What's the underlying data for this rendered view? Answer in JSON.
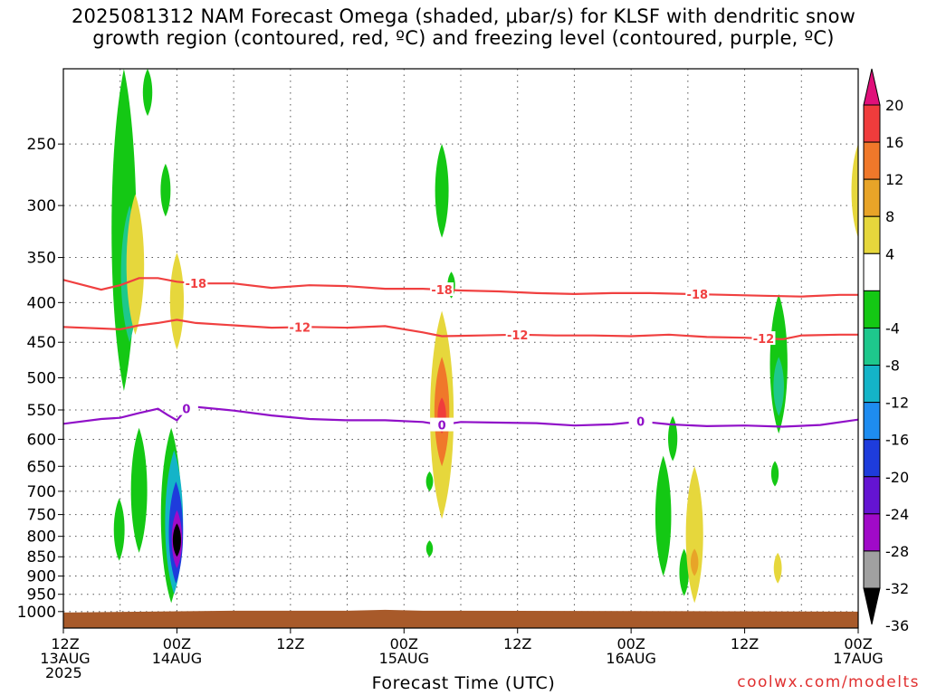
{
  "chart_data": {
    "type": "heatmap",
    "title": {
      "line1": "2025081312 NAM Forecast Omega (shaded, μbar/s) for KLSF with dendritic snow",
      "line2": "growth region (contoured, red, ºC) and freezing level (contoured, purple, ºC)"
    },
    "xlabel": "Forecast Time (UTC)",
    "credit": "coolwx.com/modelts",
    "y_axis": {
      "label": "",
      "scale": "log-pressure",
      "reversed": true,
      "range": [
        1050,
        200
      ],
      "ticks": [
        250,
        300,
        350,
        400,
        450,
        500,
        550,
        600,
        650,
        700,
        750,
        800,
        850,
        900,
        950,
        1000
      ]
    },
    "x_axis": {
      "range_hours": [
        0,
        84
      ],
      "ticks": [
        {
          "hour": 0,
          "line1": "12Z",
          "line2": "13AUG",
          "line3": "2025"
        },
        {
          "hour": 12,
          "line1": "00Z",
          "line2": "14AUG",
          "line3": ""
        },
        {
          "hour": 24,
          "line1": "12Z",
          "line2": "",
          "line3": ""
        },
        {
          "hour": 36,
          "line1": "00Z",
          "line2": "15AUG",
          "line3": ""
        },
        {
          "hour": 48,
          "line1": "12Z",
          "line2": "",
          "line3": ""
        },
        {
          "hour": 60,
          "line1": "00Z",
          "line2": "16AUG",
          "line3": ""
        },
        {
          "hour": 72,
          "line1": "12Z",
          "line2": "",
          "line3": ""
        },
        {
          "hour": 84,
          "line1": "00Z",
          "line2": "17AUG",
          "line3": ""
        }
      ]
    },
    "grid": true,
    "colorbar": {
      "labels": [
        "20",
        "16",
        "12",
        "8",
        "4",
        "-4",
        "-8",
        "-12",
        "-16",
        "-20",
        "-24",
        "-28",
        "-32",
        "-36"
      ],
      "bins": [
        {
          "lo": 20,
          "hi": null,
          "color": "#e0107a"
        },
        {
          "lo": 16,
          "hi": 20,
          "color": "#f03c3c"
        },
        {
          "lo": 12,
          "hi": 16,
          "color": "#f0782a"
        },
        {
          "lo": 8,
          "hi": 12,
          "color": "#e8a428"
        },
        {
          "lo": 4,
          "hi": 8,
          "color": "#e6d73c"
        },
        {
          "lo": -4,
          "hi": 4,
          "color": "#ffffff"
        },
        {
          "lo": -8,
          "hi": -4,
          "color": "#14c814"
        },
        {
          "lo": -12,
          "hi": -8,
          "color": "#1ec88c"
        },
        {
          "lo": -16,
          "hi": -12,
          "color": "#14b4c8"
        },
        {
          "lo": -20,
          "hi": -16,
          "color": "#1e8cf0"
        },
        {
          "lo": -24,
          "hi": -20,
          "color": "#1e3cdc"
        },
        {
          "lo": -28,
          "hi": -24,
          "color": "#6414d2"
        },
        {
          "lo": -32,
          "hi": -28,
          "color": "#a00ac8"
        },
        {
          "lo": -36,
          "hi": -32,
          "color": "#a0a0a0"
        },
        {
          "lo": null,
          "hi": -36,
          "color": "#000000"
        }
      ]
    },
    "omega_features": [
      {
        "hour": 6.4,
        "p_top": 200,
        "p_bot": 520,
        "color": "#14c814"
      },
      {
        "hour": 7.0,
        "p_top": 300,
        "p_bot": 450,
        "color": "#1ec88c"
      },
      {
        "hour": 7.6,
        "p_top": 290,
        "p_bot": 440,
        "color": "#e6d73c"
      },
      {
        "hour": 8.9,
        "p_top": 200,
        "p_bot": 230,
        "color": "#14c814"
      },
      {
        "hour": 10.8,
        "p_top": 265,
        "p_bot": 310,
        "color": "#14c814"
      },
      {
        "hour": 12.0,
        "p_top": 345,
        "p_bot": 460,
        "color": "#e6d73c"
      },
      {
        "hour": 5.9,
        "p_top": 715,
        "p_bot": 860,
        "color": "#14c814"
      },
      {
        "hour": 8.0,
        "p_top": 580,
        "p_bot": 840,
        "color": "#14c814"
      },
      {
        "hour": 11.4,
        "p_top": 580,
        "p_bot": 975,
        "color": "#14c814"
      },
      {
        "hour": 11.7,
        "p_top": 620,
        "p_bot": 950,
        "color": "#14b4c8"
      },
      {
        "hour": 11.9,
        "p_top": 680,
        "p_bot": 920,
        "color": "#1e3cdc"
      },
      {
        "hour": 12.0,
        "p_top": 740,
        "p_bot": 880,
        "color": "#a00ac8"
      },
      {
        "hour": 12.0,
        "p_top": 770,
        "p_bot": 850,
        "color": "#000000"
      },
      {
        "hour": 40.0,
        "p_top": 250,
        "p_bot": 330,
        "color": "#14c814"
      },
      {
        "hour": 40.0,
        "p_top": 410,
        "p_bot": 760,
        "color": "#e6d73c"
      },
      {
        "hour": 40.0,
        "p_top": 470,
        "p_bot": 650,
        "color": "#f0782a"
      },
      {
        "hour": 40.0,
        "p_top": 530,
        "p_bot": 590,
        "color": "#f03c3c"
      },
      {
        "hour": 41.0,
        "p_top": 365,
        "p_bot": 395,
        "color": "#14c814"
      },
      {
        "hour": 38.7,
        "p_top": 660,
        "p_bot": 700,
        "color": "#14c814"
      },
      {
        "hour": 38.7,
        "p_top": 810,
        "p_bot": 850,
        "color": "#14c814"
      },
      {
        "hour": 64.4,
        "p_top": 560,
        "p_bot": 640,
        "color": "#14c814"
      },
      {
        "hour": 63.4,
        "p_top": 630,
        "p_bot": 900,
        "color": "#14c814"
      },
      {
        "hour": 65.6,
        "p_top": 830,
        "p_bot": 955,
        "color": "#14c814"
      },
      {
        "hour": 66.7,
        "p_top": 650,
        "p_bot": 975,
        "color": "#e6d73c"
      },
      {
        "hour": 66.7,
        "p_top": 830,
        "p_bot": 900,
        "color": "#e8a428"
      },
      {
        "hour": 75.6,
        "p_top": 390,
        "p_bot": 590,
        "color": "#14c814"
      },
      {
        "hour": 75.6,
        "p_top": 470,
        "p_bot": 560,
        "color": "#1ec88c"
      },
      {
        "hour": 75.2,
        "p_top": 640,
        "p_bot": 690,
        "color": "#14c814"
      },
      {
        "hour": 75.5,
        "p_top": 840,
        "p_bot": 920,
        "color": "#e6d73c"
      },
      {
        "hour": 84.0,
        "p_top": 250,
        "p_bot": 330,
        "color": "#e6d73c"
      }
    ],
    "isotherms": [
      {
        "label": "-18",
        "color": "#f04040",
        "label_hours": [
          14,
          40,
          67
        ],
        "points": [
          [
            0,
            374
          ],
          [
            4,
            385
          ],
          [
            6,
            380
          ],
          [
            8,
            372
          ],
          [
            10,
            372
          ],
          [
            12,
            376
          ],
          [
            14,
            378
          ],
          [
            18,
            378
          ],
          [
            22,
            383
          ],
          [
            26,
            380
          ],
          [
            30,
            381
          ],
          [
            34,
            384
          ],
          [
            38,
            384
          ],
          [
            42,
            386
          ],
          [
            46,
            387
          ],
          [
            50,
            389
          ],
          [
            54,
            390
          ],
          [
            58,
            389
          ],
          [
            62,
            389
          ],
          [
            66,
            390
          ],
          [
            70,
            391
          ],
          [
            74,
            392
          ],
          [
            78,
            393
          ],
          [
            82,
            391
          ],
          [
            84,
            391
          ]
        ]
      },
      {
        "label": "-12",
        "color": "#f04040",
        "label_hours": [
          25,
          48,
          74
        ],
        "points": [
          [
            0,
            430
          ],
          [
            4,
            432
          ],
          [
            6,
            433
          ],
          [
            8,
            428
          ],
          [
            10,
            425
          ],
          [
            12,
            421
          ],
          [
            14,
            425
          ],
          [
            18,
            428
          ],
          [
            22,
            431
          ],
          [
            26,
            430
          ],
          [
            30,
            431
          ],
          [
            34,
            429
          ],
          [
            38,
            437
          ],
          [
            40,
            442
          ],
          [
            44,
            441
          ],
          [
            48,
            440
          ],
          [
            52,
            441
          ],
          [
            56,
            441
          ],
          [
            60,
            442
          ],
          [
            64,
            440
          ],
          [
            68,
            443
          ],
          [
            72,
            444
          ],
          [
            76,
            446
          ],
          [
            78,
            441
          ],
          [
            82,
            440
          ],
          [
            84,
            440
          ]
        ]
      },
      {
        "label": "0",
        "color": "#9010c8",
        "label_hours": [
          13,
          40,
          61
        ],
        "points": [
          [
            0,
            573
          ],
          [
            4,
            565
          ],
          [
            6,
            563
          ],
          [
            8,
            555
          ],
          [
            10,
            548
          ],
          [
            11,
            558
          ],
          [
            12,
            567
          ],
          [
            13,
            548
          ],
          [
            14,
            545
          ],
          [
            18,
            551
          ],
          [
            22,
            559
          ],
          [
            26,
            565
          ],
          [
            30,
            567
          ],
          [
            34,
            567
          ],
          [
            38,
            570
          ],
          [
            40,
            575
          ],
          [
            42,
            570
          ],
          [
            46,
            571
          ],
          [
            50,
            572
          ],
          [
            54,
            576
          ],
          [
            58,
            574
          ],
          [
            61,
            569
          ],
          [
            64,
            574
          ],
          [
            68,
            577
          ],
          [
            72,
            576
          ],
          [
            76,
            578
          ],
          [
            80,
            575
          ],
          [
            84,
            566
          ]
        ]
      }
    ],
    "terrain": {
      "p_top": 1000,
      "color": "#a85a2a"
    }
  }
}
